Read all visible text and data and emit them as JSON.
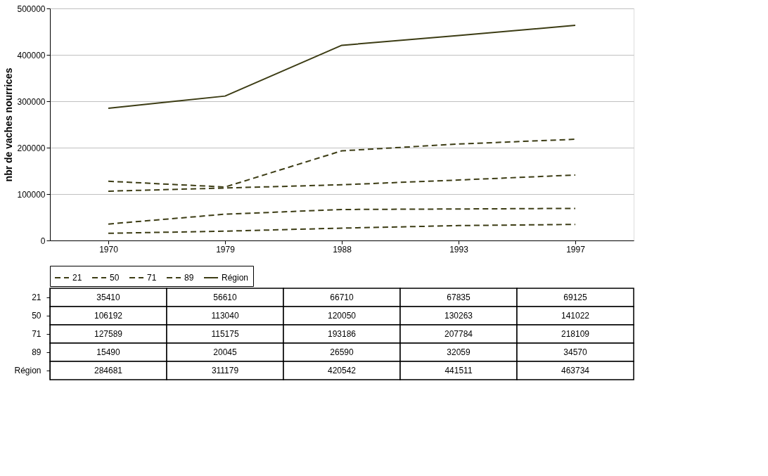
{
  "chart_data": {
    "type": "line",
    "ylabel": "nbr de vaches nourrices",
    "categories": [
      "1970",
      "1979",
      "1988",
      "1993",
      "1997"
    ],
    "series": [
      {
        "name": "21",
        "color": "#3c3c14",
        "line_style": "dashed",
        "values": [
          35410,
          56610,
          66710,
          67835,
          69125
        ]
      },
      {
        "name": "50",
        "color": "#3c3c14",
        "line_style": "dashed",
        "values": [
          106192,
          113040,
          120050,
          130263,
          141022
        ]
      },
      {
        "name": "71",
        "color": "#3c3c14",
        "line_style": "dashed",
        "values": [
          127589,
          115175,
          193186,
          207784,
          218109
        ]
      },
      {
        "name": "89",
        "color": "#3c3c14",
        "line_style": "dashed",
        "values": [
          15490,
          20045,
          26590,
          32059,
          34570
        ]
      },
      {
        "name": "Région",
        "color": "#3c3c14",
        "line_style": "solid",
        "values": [
          284681,
          311179,
          420542,
          441511,
          463734
        ]
      }
    ],
    "ylim": [
      0,
      500000
    ],
    "yticks": [
      0,
      100000,
      200000,
      300000,
      400000,
      500000
    ],
    "grid": "y",
    "legend": "bottom",
    "data_labels": true
  }
}
